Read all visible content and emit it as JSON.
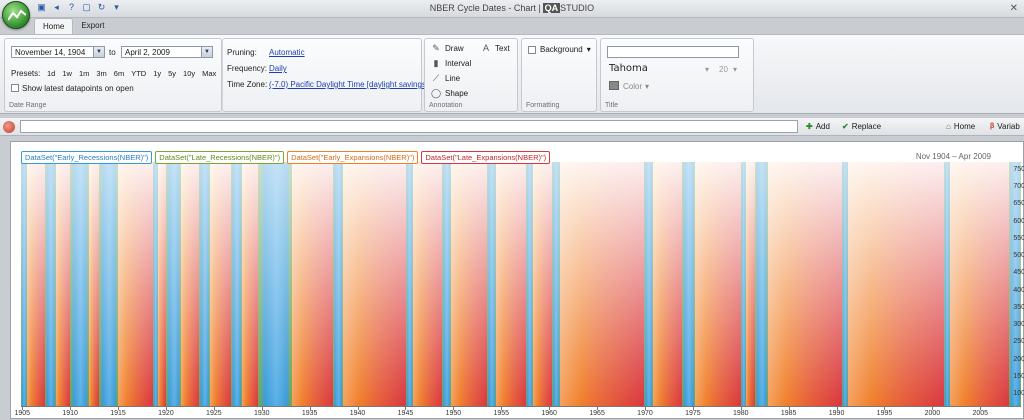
{
  "window": {
    "title": "NBER Cycle Dates - Chart |",
    "brand_box": "QA",
    "brand_text": "STUDIO",
    "close": "✕"
  },
  "tabs": [
    {
      "label": "Home",
      "active": true
    },
    {
      "label": "Export",
      "active": false
    }
  ],
  "date_range": {
    "group_label": "Date Range",
    "start": "November 14, 1904",
    "to_label": "to",
    "end": "April 2, 2009",
    "presets_label": "Presets:",
    "presets": [
      "1d",
      "1w",
      "1m",
      "3m",
      "6m",
      "YTD",
      "1y",
      "5y",
      "10y",
      "Max"
    ],
    "show_latest_label": "Show latest datapoints on open"
  },
  "settings": {
    "pruning_label": "Pruning:",
    "pruning_value": "Automatic",
    "frequency_label": "Frequency:",
    "frequency_value": "Daily",
    "timezone_label": "Time Zone:",
    "timezone_value": "(-7.0) Pacific Daylight Time [daylight savings]"
  },
  "annotation": {
    "group_label": "Annotation",
    "draw": "Draw",
    "text": "Text",
    "interval": "Interval",
    "line": "Line",
    "shape": "Shape"
  },
  "formatting": {
    "group_label": "Formatting",
    "background": "Background"
  },
  "title_group": {
    "group_label": "Title",
    "title_value": "",
    "font_value": "Tahoma",
    "size_value": "20",
    "color_label": "Color"
  },
  "toolbar": {
    "input_value": "",
    "add": "Add",
    "replace": "Replace",
    "home": "Home",
    "variables": "Variab"
  },
  "chart_data": {
    "type": "area",
    "legend": [
      {
        "label": "DataSet(\"Early_Recessions(NBER)\")",
        "color": "#3a9ad9"
      },
      {
        "label": "DataSet(\"Late_Recessions(NBER)\")",
        "color": "#7aa834"
      },
      {
        "label": "DataSet(\"Early_Expansions(NBER)\")",
        "color": "#f07f2a"
      },
      {
        "label": "DataSet(\"Late_Expansions(NBER)\")",
        "color": "#d9363e"
      }
    ],
    "range_text": "Nov 1904  –  Apr 2009",
    "x_range": [
      1904.87,
      2009.25
    ],
    "x_ticks": [
      "1905",
      "1910",
      "1915",
      "1920",
      "1925",
      "1930",
      "1935",
      "1940",
      "1945",
      "1950",
      "1955",
      "1960",
      "1965",
      "1970",
      "1975",
      "1980",
      "1985",
      "1990",
      "1995",
      "2000",
      "2005"
    ],
    "y_ticks": [
      "750",
      "700",
      "650",
      "600",
      "550",
      "500",
      "450",
      "400",
      "350",
      "300",
      "250",
      "200",
      "150",
      "100"
    ],
    "y_range": [
      100,
      750
    ],
    "periods": [
      {
        "s": 1904.87,
        "e": 1905.5,
        "k": "r"
      },
      {
        "s": 1905.5,
        "e": 1907.4,
        "k": "e"
      },
      {
        "s": 1907.4,
        "e": 1908.5,
        "k": "r"
      },
      {
        "s": 1908.5,
        "e": 1910.0,
        "k": "e"
      },
      {
        "s": 1910.0,
        "e": 1912.0,
        "k": "r"
      },
      {
        "s": 1912.0,
        "e": 1913.0,
        "k": "e"
      },
      {
        "s": 1913.0,
        "e": 1914.95,
        "k": "r"
      },
      {
        "s": 1914.95,
        "e": 1918.6,
        "k": "e"
      },
      {
        "s": 1918.6,
        "e": 1919.2,
        "k": "r"
      },
      {
        "s": 1919.2,
        "e": 1920.0,
        "k": "e"
      },
      {
        "s": 1920.0,
        "e": 1921.55,
        "k": "r"
      },
      {
        "s": 1921.55,
        "e": 1923.4,
        "k": "e"
      },
      {
        "s": 1923.4,
        "e": 1924.55,
        "k": "r"
      },
      {
        "s": 1924.55,
        "e": 1926.8,
        "k": "e"
      },
      {
        "s": 1926.8,
        "e": 1927.9,
        "k": "r"
      },
      {
        "s": 1927.9,
        "e": 1929.65,
        "k": "e"
      },
      {
        "s": 1929.65,
        "e": 1933.2,
        "k": "r"
      },
      {
        "s": 1933.2,
        "e": 1937.4,
        "k": "e"
      },
      {
        "s": 1937.4,
        "e": 1938.5,
        "k": "r"
      },
      {
        "s": 1938.5,
        "e": 1945.1,
        "k": "e"
      },
      {
        "s": 1945.1,
        "e": 1945.8,
        "k": "r"
      },
      {
        "s": 1945.8,
        "e": 1948.85,
        "k": "e"
      },
      {
        "s": 1948.85,
        "e": 1949.8,
        "k": "r"
      },
      {
        "s": 1949.8,
        "e": 1953.5,
        "k": "e"
      },
      {
        "s": 1953.5,
        "e": 1954.4,
        "k": "r"
      },
      {
        "s": 1954.4,
        "e": 1957.6,
        "k": "e"
      },
      {
        "s": 1957.6,
        "e": 1958.3,
        "k": "r"
      },
      {
        "s": 1958.3,
        "e": 1960.3,
        "k": "e"
      },
      {
        "s": 1960.3,
        "e": 1961.1,
        "k": "r"
      },
      {
        "s": 1961.1,
        "e": 1969.95,
        "k": "e"
      },
      {
        "s": 1969.95,
        "e": 1970.85,
        "k": "r"
      },
      {
        "s": 1970.85,
        "e": 1973.85,
        "k": "e"
      },
      {
        "s": 1973.85,
        "e": 1975.2,
        "k": "r"
      },
      {
        "s": 1975.2,
        "e": 1980.0,
        "k": "e"
      },
      {
        "s": 1980.0,
        "e": 1980.5,
        "k": "r"
      },
      {
        "s": 1980.5,
        "e": 1981.5,
        "k": "e"
      },
      {
        "s": 1981.5,
        "e": 1982.85,
        "k": "r"
      },
      {
        "s": 1982.85,
        "e": 1990.55,
        "k": "e"
      },
      {
        "s": 1990.55,
        "e": 1991.2,
        "k": "r"
      },
      {
        "s": 1991.2,
        "e": 2001.2,
        "k": "e"
      },
      {
        "s": 2001.2,
        "e": 2001.85,
        "k": "r"
      },
      {
        "s": 2001.85,
        "e": 2007.95,
        "k": "e"
      },
      {
        "s": 2007.95,
        "e": 2009.25,
        "k": "r"
      }
    ]
  }
}
